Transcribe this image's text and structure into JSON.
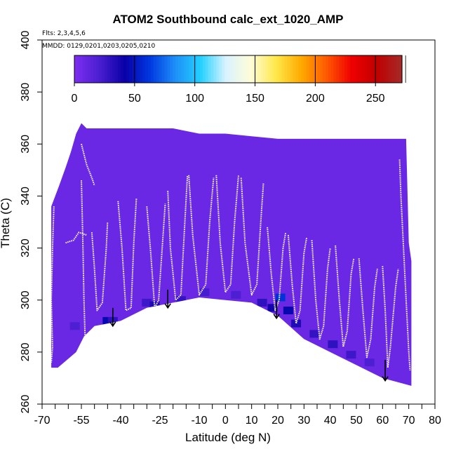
{
  "chart_data": {
    "type": "heatmap",
    "title": "ATOM2 Southbound calc_ext_1020_AMP",
    "annotations": {
      "flights": "Flts: 2,3,4,5,6",
      "dates": "MMDD: 0129,0201,0203,0205,0210"
    },
    "xlabel": "Latitude (deg N)",
    "ylabel": "Theta (C)",
    "xlim": [
      -70,
      80
    ],
    "ylim": [
      260,
      400
    ],
    "x_ticks": [
      -70,
      -55,
      -40,
      -25,
      -10,
      0,
      10,
      20,
      30,
      40,
      50,
      60,
      70,
      80
    ],
    "x_minor_ticks": [
      -65,
      -60,
      -50,
      -45,
      -35,
      -30,
      -20,
      -15,
      -5,
      5,
      15,
      25,
      35,
      45,
      55,
      65,
      75
    ],
    "y_ticks": [
      260,
      280,
      300,
      320,
      340,
      360,
      380,
      400
    ],
    "colorbar": {
      "range": [
        0,
        272
      ],
      "ticks": [
        0,
        50,
        100,
        150,
        200,
        250
      ],
      "colors": [
        "#7e2ef2",
        "#4a1ed0",
        "#0a00a8",
        "#0038e0",
        "#1e8ff8",
        "#22d0ff",
        "#d8f3ff",
        "#fffcd8",
        "#ffe84a",
        "#ffaa00",
        "#ff5a00",
        "#ef0000",
        "#c00000",
        "#a52a2a"
      ]
    },
    "domain_top": [
      [
        -66.5,
        336
      ],
      [
        -63.5,
        344
      ],
      [
        -61,
        351
      ],
      [
        -59,
        357
      ],
      [
        -57,
        364
      ],
      [
        -55,
        368
      ],
      [
        -53,
        366
      ],
      [
        -50,
        366
      ],
      [
        -47,
        366
      ],
      [
        -20,
        366
      ],
      [
        -10,
        364
      ],
      [
        0,
        364
      ],
      [
        10,
        363
      ],
      [
        20,
        362
      ],
      [
        30,
        362
      ],
      [
        69,
        362
      ],
      [
        70,
        322
      ],
      [
        71,
        315
      ]
    ],
    "domain_bottom": [
      [
        -66.5,
        274
      ],
      [
        -64,
        274
      ],
      [
        -57,
        280
      ],
      [
        -54,
        286
      ],
      [
        -50,
        290
      ],
      [
        -45,
        291
      ],
      [
        -40,
        292
      ],
      [
        -30,
        297
      ],
      [
        -20,
        299
      ],
      [
        -10,
        301
      ],
      [
        0,
        300
      ],
      [
        10,
        299
      ],
      [
        20,
        294
      ],
      [
        30,
        285
      ],
      [
        40,
        280
      ],
      [
        50,
        275
      ],
      [
        60,
        270
      ],
      [
        71,
        267
      ]
    ],
    "background_value": 8,
    "enhanced_cells": [
      {
        "lat": -57.5,
        "theta": 290,
        "value": 20
      },
      {
        "lat": -45,
        "theta": 292,
        "value": 45
      },
      {
        "lat": -43,
        "theta": 292,
        "value": 30
      },
      {
        "lat": -30,
        "theta": 299,
        "value": 25
      },
      {
        "lat": -27,
        "theta": 298,
        "value": 35
      },
      {
        "lat": -17,
        "theta": 300,
        "value": 28
      },
      {
        "lat": -8,
        "theta": 303,
        "value": 22
      },
      {
        "lat": 4,
        "theta": 302,
        "value": 20
      },
      {
        "lat": 14,
        "theta": 299,
        "value": 30
      },
      {
        "lat": 18,
        "theta": 297,
        "value": 40
      },
      {
        "lat": 21,
        "theta": 301,
        "value": 60
      },
      {
        "lat": 24,
        "theta": 296,
        "value": 45
      },
      {
        "lat": 27,
        "theta": 291,
        "value": 35
      },
      {
        "lat": 34,
        "theta": 287,
        "value": 28
      },
      {
        "lat": 41,
        "theta": 283,
        "value": 30
      },
      {
        "lat": 48,
        "theta": 279,
        "value": 25
      },
      {
        "lat": 55,
        "theta": 276,
        "value": 20
      }
    ],
    "profiles": [
      [
        [
          -65.5,
          336
        ],
        [
          -66,
          320
        ],
        [
          -66.5,
          300
        ],
        [
          -66,
          282
        ],
        [
          -66.5,
          276
        ]
      ],
      [
        [
          -61,
          322
        ],
        [
          -58,
          323
        ],
        [
          -56,
          326
        ],
        [
          -53,
          325
        ]
      ],
      [
        [
          -55,
          360
        ],
        [
          -53,
          352
        ],
        [
          -51,
          347
        ],
        [
          -50,
          344
        ]
      ],
      [
        [
          -55,
          346
        ],
        [
          -54.5,
          325
        ],
        [
          -54,
          300
        ],
        [
          -53.5,
          283
        ]
      ],
      [
        [
          -51,
          326
        ],
        [
          -50,
          312
        ],
        [
          -49,
          296
        ],
        [
          -47,
          299
        ],
        [
          -45.5,
          320
        ],
        [
          -45,
          330
        ]
      ],
      [
        [
          -41,
          338
        ],
        [
          -39.5,
          320
        ],
        [
          -38,
          296
        ],
        [
          -36,
          297
        ],
        [
          -35,
          322
        ],
        [
          -34,
          339
        ]
      ],
      [
        [
          -30,
          336
        ],
        [
          -28.5,
          318
        ],
        [
          -27,
          297
        ],
        [
          -25.5,
          300
        ],
        [
          -24,
          322
        ],
        [
          -23,
          337
        ]
      ],
      [
        [
          -22,
          342
        ],
        [
          -21,
          320
        ],
        [
          -19,
          300
        ],
        [
          -17,
          302
        ],
        [
          -15.5,
          330
        ],
        [
          -14.5,
          348
        ]
      ],
      [
        [
          -14,
          348
        ],
        [
          -12.5,
          325
        ],
        [
          -10,
          302
        ],
        [
          -7.5,
          306
        ],
        [
          -6,
          330
        ],
        [
          -4.5,
          347
        ]
      ],
      [
        [
          -3.5,
          348
        ],
        [
          -2,
          322
        ],
        [
          0,
          303
        ],
        [
          2,
          306
        ],
        [
          3.5,
          330
        ],
        [
          5,
          348
        ]
      ],
      [
        [
          6,
          347
        ],
        [
          7.5,
          322
        ],
        [
          10,
          302
        ],
        [
          12,
          306
        ],
        [
          13.5,
          330
        ],
        [
          14.5,
          345
        ]
      ],
      [
        [
          16,
          328
        ],
        [
          17.5,
          310
        ],
        [
          19,
          296
        ],
        [
          20.5,
          300
        ],
        [
          22,
          320
        ],
        [
          23,
          326
        ]
      ],
      [
        [
          24,
          325
        ],
        [
          25.5,
          306
        ],
        [
          27,
          291
        ],
        [
          28.5,
          296
        ],
        [
          30,
          318
        ],
        [
          31,
          324
        ]
      ],
      [
        [
          33,
          323
        ],
        [
          34.5,
          300
        ],
        [
          36,
          285
        ],
        [
          37.5,
          290
        ],
        [
          39,
          312
        ],
        [
          40,
          320
        ]
      ],
      [
        [
          42,
          321
        ],
        [
          43.5,
          300
        ],
        [
          45,
          282
        ],
        [
          46.5,
          288
        ],
        [
          48,
          310
        ],
        [
          49,
          316
        ]
      ],
      [
        [
          51,
          316
        ],
        [
          52.5,
          296
        ],
        [
          54,
          278
        ],
        [
          55.5,
          285
        ],
        [
          57,
          305
        ],
        [
          58,
          312
        ]
      ],
      [
        [
          60,
          313
        ],
        [
          61,
          296
        ],
        [
          62,
          274
        ],
        [
          63,
          282
        ],
        [
          65,
          305
        ],
        [
          66,
          312
        ]
      ],
      [
        [
          66.5,
          354
        ],
        [
          67,
          340
        ],
        [
          68,
          320
        ],
        [
          69,
          300
        ],
        [
          70,
          280
        ],
        [
          70.5,
          273
        ]
      ]
    ],
    "arrows": [
      {
        "lat": -43,
        "theta_from": 297,
        "theta_to": 290
      },
      {
        "lat": -22,
        "theta_from": 304,
        "theta_to": 297
      },
      {
        "lat": 19.5,
        "theta_from": 300,
        "theta_to": 293
      },
      {
        "lat": 61,
        "theta_from": 277,
        "theta_to": 269
      }
    ]
  }
}
